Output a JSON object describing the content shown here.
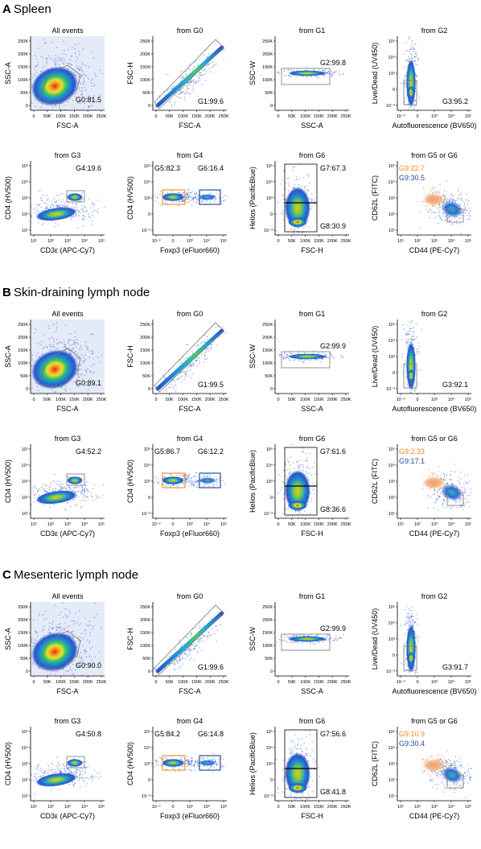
{
  "figure": {
    "sections": [
      {
        "letter": "A",
        "title": "Spleen",
        "panels": [
          {
            "type": "fsc_ssc",
            "title": "All events",
            "xlabel": "FSC-A",
            "ylabel": "SSC-A",
            "gates": [
              "G0:81.5"
            ]
          },
          {
            "type": "singlet",
            "title": "from G0",
            "xlabel": "FSC-A",
            "ylabel": "FSC-H",
            "gates": [
              "G1:99.6"
            ]
          },
          {
            "type": "ssc_width",
            "title": "from G1",
            "xlabel": "SSC-A",
            "ylabel": "SSC-W",
            "gates": [
              "G2:99.8"
            ]
          },
          {
            "type": "live_dead",
            "title": "from G2",
            "xlabel": "Autofluorescence (BV650)",
            "ylabel": "Live/Dead (UV450)",
            "gates": [
              "G3:95.2"
            ]
          },
          {
            "type": "cd3_cd4",
            "title": "from G3",
            "xlabel": "CD3ε (APC-Cy7)",
            "ylabel": "CD4 (HV500)",
            "gates": [
              "G4:19.6"
            ]
          },
          {
            "type": "foxp3",
            "title": "from G4",
            "xlabel": "Foxp3 (eFluor660)",
            "ylabel": "CD4 (HV500)",
            "gates": [
              "G5:82.3",
              "G6:16.4"
            ]
          },
          {
            "type": "helios",
            "title": "from G6",
            "xlabel": "FSC-H",
            "ylabel": "Helios (PacificBlue)",
            "gates": [
              "G7:67.3",
              "G8:30.9"
            ]
          },
          {
            "type": "cd44_cd62l",
            "title": "from G5 or G6",
            "xlabel": "CD44 (PE-Cy7)",
            "ylabel": "CD62L (FITC)",
            "gates": [
              "G9:22.7",
              "G9:30.5"
            ]
          }
        ]
      },
      {
        "letter": "B",
        "title": "Skin-draining lymph node",
        "panels": [
          {
            "type": "fsc_ssc",
            "title": "All events",
            "xlabel": "FSC-A",
            "ylabel": "SSC-A",
            "gates": [
              "G0:89.1"
            ]
          },
          {
            "type": "singlet",
            "title": "from G0",
            "xlabel": "FSC-A",
            "ylabel": "FSC-H",
            "gates": [
              "G1:99.5"
            ]
          },
          {
            "type": "ssc_width",
            "title": "from G1",
            "xlabel": "SSC-A",
            "ylabel": "SSC-W",
            "gates": [
              "G2:99.9"
            ]
          },
          {
            "type": "live_dead",
            "title": "from G2",
            "xlabel": "Autofluorescence (BV650)",
            "ylabel": "Live/Dead (UV450)",
            "gates": [
              "G3:92.1"
            ]
          },
          {
            "type": "cd3_cd4",
            "title": "from G3",
            "xlabel": "CD3ε (APC-Cy7)",
            "ylabel": "CD4 (HV500)",
            "gates": [
              "G4:52.2"
            ]
          },
          {
            "type": "foxp3",
            "title": "from G4",
            "xlabel": "Foxp3 (eFluor660)",
            "ylabel": "CD4 (HV500)",
            "gates": [
              "G5:86.7",
              "G6:12.2"
            ]
          },
          {
            "type": "helios",
            "title": "from G6",
            "xlabel": "FSC-H",
            "ylabel": "Helios (PacificBlue)",
            "gates": [
              "G7:61.6",
              "G8:36.6"
            ]
          },
          {
            "type": "cd44_cd62l",
            "title": "from G5 or G6",
            "xlabel": "CD44 (PE-Cy7)",
            "ylabel": "CD62L (FITC)",
            "gates": [
              "G9:2.33",
              "G9:17.1"
            ]
          }
        ]
      },
      {
        "letter": "C",
        "title": "Mesenteric lymph node",
        "panels": [
          {
            "type": "fsc_ssc",
            "title": "All events",
            "xlabel": "FSC-A",
            "ylabel": "SSC-A",
            "gates": [
              "G0:90.0"
            ]
          },
          {
            "type": "singlet",
            "title": "from G0",
            "xlabel": "FSC-A",
            "ylabel": "FSC-H",
            "gates": [
              "G1:99.6"
            ]
          },
          {
            "type": "ssc_width",
            "title": "from G1",
            "xlabel": "SSC-A",
            "ylabel": "SSC-W",
            "gates": [
              "G2:99.9"
            ]
          },
          {
            "type": "live_dead",
            "title": "from G2",
            "xlabel": "Autofluorescence (BV650)",
            "ylabel": "Live/Dead (UV450)",
            "gates": [
              "G3:91.7"
            ]
          },
          {
            "type": "cd3_cd4",
            "title": "from G3",
            "xlabel": "CD3ε (APC-Cy7)",
            "ylabel": "CD4 (HV500)",
            "gates": [
              "G4:50.8"
            ]
          },
          {
            "type": "foxp3",
            "title": "from G4",
            "xlabel": "Foxp3 (eFluor660)",
            "ylabel": "CD4 (HV500)",
            "gates": [
              "G5:84.2",
              "G6:14.8"
            ]
          },
          {
            "type": "helios",
            "title": "from G6",
            "xlabel": "FSC-H",
            "ylabel": "Helios (PacificBlue)",
            "gates": [
              "G7:56.6",
              "G8:41.8"
            ]
          },
          {
            "type": "cd44_cd62l",
            "title": "from G5 or G6",
            "xlabel": "CD44 (PE-Cy7)",
            "ylabel": "CD62L (FITC)",
            "gates": [
              "G9:10.9",
              "G9:30.4"
            ]
          }
        ]
      }
    ],
    "ticks": {
      "linear_scatter": [
        "0",
        "50K",
        "100K",
        "150K",
        "200K",
        "250K"
      ],
      "log_y_full": [
        "10⁵",
        "10⁴",
        "10³",
        "0",
        "10⁻³"
      ],
      "log_y_pos": [
        "10⁵",
        "10⁴",
        "10³",
        "10²",
        "10¹"
      ],
      "x_autofl": [
        "10⁻³",
        "0",
        "10³",
        "10⁴",
        "10⁵"
      ],
      "x_cd3": [
        "10¹",
        "10²",
        "10³",
        "10⁴",
        "10⁵"
      ],
      "x_foxp3": [
        "10⁻³",
        "0",
        "10³",
        "10⁴",
        "10⁵"
      ],
      "x_cd44": [
        "10¹",
        "10²",
        "10³",
        "10⁴",
        "10⁵"
      ]
    },
    "colors": {
      "gate_orange": "#f0962a",
      "gate_blue": "#2a4f9e",
      "gate_gray": "#777777",
      "gate_black": "#000000",
      "gate_text_orange": "#f08a1c",
      "gate_text_blue": "#2b4aa0"
    }
  }
}
